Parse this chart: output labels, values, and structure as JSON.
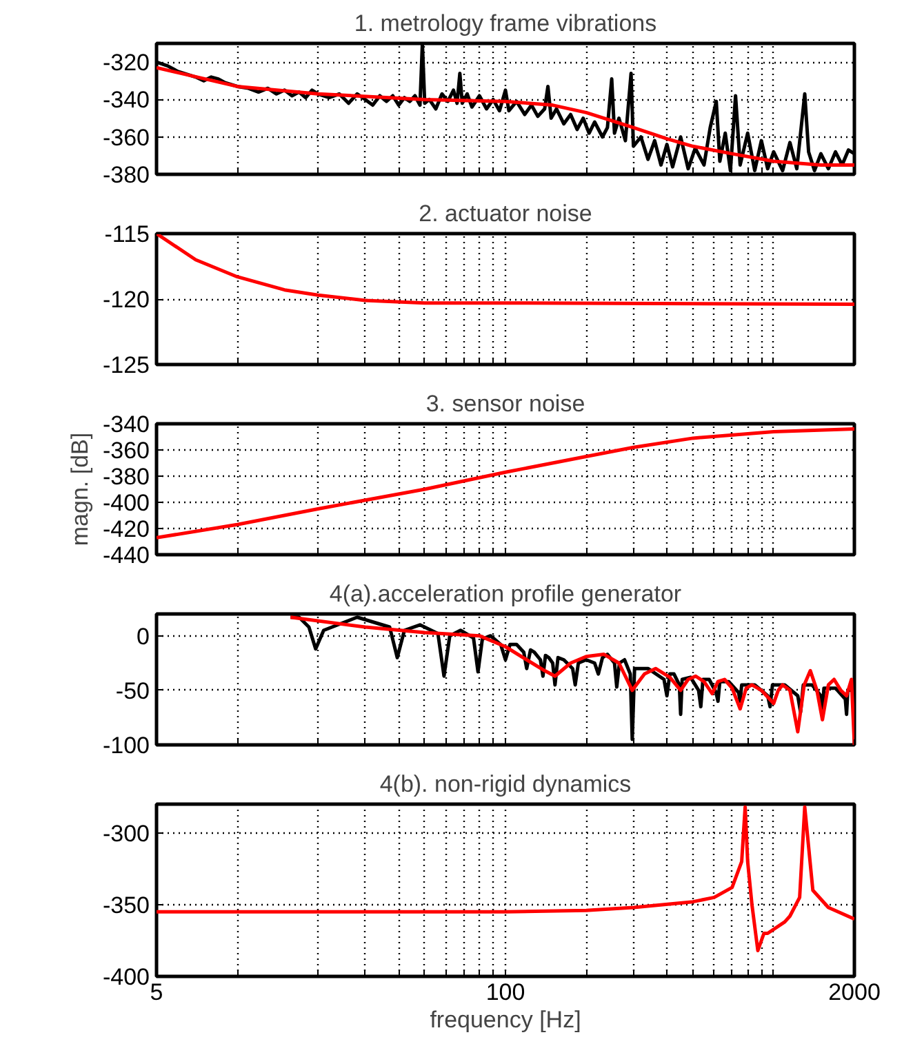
{
  "chart_data": [
    {
      "type": "line",
      "title": "1. metrology frame vibrations",
      "log": "x",
      "grid": true,
      "tick_labels": "y",
      "line_style": "solid",
      "xlim": [
        5,
        2000
      ],
      "xticks": [
        5,
        {
          "value": 10,
          "label": null
        },
        {
          "value": 20,
          "label": null
        },
        {
          "value": 30,
          "label": null
        },
        {
          "value": 40,
          "label": null
        },
        {
          "value": 50,
          "label": null
        },
        {
          "value": 60,
          "label": null
        },
        {
          "value": 70,
          "label": null
        },
        {
          "value": 80,
          "label": null
        },
        {
          "value": 90,
          "label": null
        },
        100,
        {
          "value": 200,
          "label": null
        },
        {
          "value": 300,
          "label": null
        },
        {
          "value": 400,
          "label": null
        },
        {
          "value": 500,
          "label": null
        },
        {
          "value": 600,
          "label": null
        },
        {
          "value": 700,
          "label": null
        },
        {
          "value": 800,
          "label": null
        },
        {
          "value": 900,
          "label": null
        },
        {
          "value": 1000,
          "label": null
        },
        2000
      ],
      "ylim": [
        -380,
        -310
      ],
      "yticks": [
        -380,
        -360,
        -340,
        -320
      ],
      "series": [
        {
          "color": "#000000",
          "x": [
            5,
            5.5,
            6,
            7,
            7.5,
            8,
            8.5,
            9,
            10,
            11,
            12,
            13,
            14,
            15,
            16,
            17,
            18,
            19,
            20,
            22,
            24,
            26,
            28,
            30,
            32,
            34,
            36,
            38,
            40,
            42,
            44,
            46,
            48,
            49,
            50,
            52,
            55,
            58,
            61,
            64,
            66,
            67.6,
            69,
            72,
            75,
            80,
            85,
            90,
            95,
            100,
            103,
            110,
            118,
            125,
            132,
            140,
            144,
            148,
            155,
            165,
            175,
            185,
            195,
            205,
            215,
            230,
            240,
            249,
            255,
            265,
            280,
            294,
            300,
            320,
            340,
            360,
            380,
            400,
            420,
            450,
            480,
            510,
            550,
            580,
            611,
            630,
            660,
            690,
            721,
            750,
            800,
            850,
            900,
            950,
            1000,
            1080,
            1150,
            1220,
            1306,
            1350,
            1420,
            1500,
            1600,
            1700,
            1800,
            1900,
            2000
          ],
          "values": [
            -320,
            -322,
            -325,
            -328,
            -330,
            -328,
            -329,
            -331,
            -333,
            -334,
            -336,
            -334,
            -337,
            -335,
            -338,
            -336,
            -339,
            -335,
            -337,
            -339,
            -337,
            -342,
            -337,
            -340,
            -343,
            -338,
            -341,
            -338,
            -343,
            -339,
            -341,
            -338,
            -343,
            -310,
            -342,
            -340,
            -345,
            -337,
            -341,
            -335,
            -342,
            -326,
            -342,
            -337,
            -344,
            -338,
            -345,
            -340,
            -346,
            -335,
            -346,
            -341,
            -348,
            -343,
            -349,
            -345,
            -333,
            -350,
            -345,
            -353,
            -348,
            -356,
            -350,
            -358,
            -352,
            -360,
            -355,
            -329,
            -358,
            -350,
            -362,
            -326,
            -365,
            -360,
            -372,
            -362,
            -375,
            -364,
            -376,
            -360,
            -377,
            -366,
            -375,
            -355,
            -341,
            -373,
            -358,
            -378,
            -338,
            -375,
            -358,
            -378,
            -362,
            -377,
            -368,
            -378,
            -363,
            -377,
            -337,
            -368,
            -378,
            -369,
            -377,
            -368,
            -375,
            -367,
            -369
          ]
        },
        {
          "color": "#ff0000",
          "x": [
            5,
            10,
            20,
            50,
            100,
            150,
            200,
            300,
            400,
            500,
            700,
            1000,
            1500,
            2000
          ],
          "values": [
            -323,
            -333,
            -337,
            -340,
            -341,
            -343,
            -347,
            -355,
            -361,
            -365,
            -369,
            -373,
            -375,
            -375
          ]
        }
      ]
    },
    {
      "type": "line",
      "title": "2. actuator noise",
      "log": "x",
      "grid": true,
      "tick_labels": "y",
      "line_style": "solid",
      "xlim": [
        5,
        2000
      ],
      "xticks": [
        5,
        {
          "value": 10,
          "label": null
        },
        {
          "value": 20,
          "label": null
        },
        {
          "value": 30,
          "label": null
        },
        {
          "value": 40,
          "label": null
        },
        {
          "value": 50,
          "label": null
        },
        {
          "value": 60,
          "label": null
        },
        {
          "value": 70,
          "label": null
        },
        {
          "value": 80,
          "label": null
        },
        {
          "value": 90,
          "label": null
        },
        100,
        {
          "value": 200,
          "label": null
        },
        {
          "value": 300,
          "label": null
        },
        {
          "value": 400,
          "label": null
        },
        {
          "value": 500,
          "label": null
        },
        {
          "value": 600,
          "label": null
        },
        {
          "value": 700,
          "label": null
        },
        {
          "value": 800,
          "label": null
        },
        {
          "value": 900,
          "label": null
        },
        {
          "value": 1000,
          "label": null
        },
        2000
      ],
      "ylim": [
        -125,
        -115
      ],
      "yticks": [
        -125,
        -120,
        -115
      ],
      "series": [
        {
          "color": "#ff0000",
          "x": [
            5,
            7,
            10,
            15,
            20,
            30,
            50,
            100,
            2000
          ],
          "values": [
            -115,
            -117,
            -118.3,
            -119.3,
            -119.7,
            -120.1,
            -120.3,
            -120.3,
            -120.4
          ]
        }
      ]
    },
    {
      "type": "line",
      "title": "3. sensor noise",
      "ylabel": "magn. [dB]",
      "log": "x",
      "grid": true,
      "tick_labels": "y",
      "line_style": "solid",
      "xlim": [
        5,
        2000
      ],
      "xticks": [
        5,
        {
          "value": 10,
          "label": null
        },
        {
          "value": 20,
          "label": null
        },
        {
          "value": 30,
          "label": null
        },
        {
          "value": 40,
          "label": null
        },
        {
          "value": 50,
          "label": null
        },
        {
          "value": 60,
          "label": null
        },
        {
          "value": 70,
          "label": null
        },
        {
          "value": 80,
          "label": null
        },
        {
          "value": 90,
          "label": null
        },
        100,
        {
          "value": 200,
          "label": null
        },
        {
          "value": 300,
          "label": null
        },
        {
          "value": 400,
          "label": null
        },
        {
          "value": 500,
          "label": null
        },
        {
          "value": 600,
          "label": null
        },
        {
          "value": 700,
          "label": null
        },
        {
          "value": 800,
          "label": null
        },
        {
          "value": 900,
          "label": null
        },
        {
          "value": 1000,
          "label": null
        },
        2000
      ],
      "ylim": [
        -440,
        -340
      ],
      "yticks": [
        -440,
        -420,
        -400,
        -380,
        -360,
        -340
      ],
      "series": [
        {
          "color": "#ff0000",
          "x": [
            5,
            10,
            20,
            50,
            100,
            200,
            300,
            500,
            1000,
            2000
          ],
          "values": [
            -427,
            -417,
            -405,
            -390,
            -377,
            -365,
            -358,
            -351,
            -346,
            -344
          ]
        }
      ]
    },
    {
      "type": "line",
      "title": "4(a).acceleration profile generator",
      "log": "x",
      "grid": true,
      "tick_labels": "y",
      "line_style": "solid",
      "xlim": [
        5,
        2000
      ],
      "xticks": [
        5,
        {
          "value": 10,
          "label": null
        },
        {
          "value": 20,
          "label": null
        },
        {
          "value": 30,
          "label": null
        },
        {
          "value": 40,
          "label": null
        },
        {
          "value": 50,
          "label": null
        },
        {
          "value": 60,
          "label": null
        },
        {
          "value": 70,
          "label": null
        },
        {
          "value": 80,
          "label": null
        },
        {
          "value": 90,
          "label": null
        },
        100,
        {
          "value": 200,
          "label": null
        },
        {
          "value": 300,
          "label": null
        },
        {
          "value": 400,
          "label": null
        },
        {
          "value": 500,
          "label": null
        },
        {
          "value": 600,
          "label": null
        },
        {
          "value": 700,
          "label": null
        },
        {
          "value": 800,
          "label": null
        },
        {
          "value": 900,
          "label": null
        },
        {
          "value": 1000,
          "label": null
        },
        2000
      ],
      "ylim": [
        -100,
        20
      ],
      "yticks": [
        -100,
        -50,
        0
      ],
      "series": [
        {
          "color": "#000000",
          "x": [
            15.8,
            17,
            18.5,
            19.6,
            21,
            28,
            37,
            39.5,
            42,
            48,
            56,
            59,
            62,
            68,
            76,
            79,
            82,
            88,
            96,
            100,
            104,
            110,
            117,
            120,
            124,
            128,
            135,
            138,
            141,
            145,
            150,
            153,
            157,
            165,
            178,
            182,
            187,
            200,
            215,
            222,
            230,
            240,
            255,
            260,
            266,
            278,
            292,
            297,
            303,
            340,
            390,
            400,
            410,
            425,
            445,
            450,
            456,
            490,
            525,
            535,
            545,
            575,
            610,
            620,
            630,
            680,
            740,
            750,
            760,
            850,
            950,
            970,
            990,
            1100,
            1230,
            1260,
            1290,
            1390,
            1500,
            1520,
            1540,
            1700,
            1850,
            1870,
            1890,
            2000
          ],
          "values": [
            17,
            17,
            8,
            -12,
            5,
            17,
            8,
            -20,
            5,
            10,
            2,
            -37,
            0,
            5,
            -2,
            -33,
            -3,
            0,
            -8,
            -22,
            -8,
            -8,
            -15,
            -30,
            -13,
            -15,
            -22,
            -37,
            -18,
            -20,
            -25,
            -45,
            -20,
            -22,
            -30,
            -45,
            -25,
            -22,
            -25,
            -35,
            -20,
            -17,
            -25,
            -47,
            -25,
            -22,
            -35,
            -95,
            -30,
            -30,
            -40,
            -55,
            -35,
            -35,
            -45,
            -72,
            -40,
            -38,
            -50,
            -65,
            -40,
            -40,
            -52,
            -60,
            -42,
            -42,
            -52,
            -60,
            -45,
            -45,
            -55,
            -65,
            -45,
            -45,
            -55,
            -70,
            -45,
            -45,
            -55,
            -70,
            -48,
            -48,
            -58,
            -72,
            -50,
            -50
          ]
        },
        {
          "color": "#ff0000",
          "x": [
            15.8,
            30,
            50,
            80,
            100,
            120,
            140,
            153,
            175,
            200,
            233,
            265,
            297,
            330,
            363,
            410,
            450,
            480,
            512,
            550,
            590,
            620,
            656,
            700,
            750,
            790,
            830,
            900,
            1000,
            1040,
            1080,
            1150,
            1230,
            1300,
            1370,
            1450,
            1520,
            1600,
            1680,
            1780,
            1870,
            1950,
            2000
          ],
          "values": [
            17,
            8,
            3,
            0,
            -10,
            -22,
            -32,
            -37,
            -25,
            -19,
            -17,
            -25,
            -50,
            -35,
            -30,
            -38,
            -50,
            -40,
            -37,
            -42,
            -53,
            -42,
            -40,
            -48,
            -67,
            -48,
            -45,
            -50,
            -62,
            -50,
            -45,
            -50,
            -88,
            -45,
            -32,
            -50,
            -77,
            -45,
            -40,
            -50,
            -55,
            -40,
            -100
          ]
        }
      ]
    },
    {
      "type": "line",
      "title": "4(b). non-rigid dynamics",
      "xlabel": "frequency [Hz]",
      "log": "x",
      "grid": true,
      "line_style": "solid",
      "xlim": [
        5,
        2000
      ],
      "xticks": [
        5,
        {
          "value": 10,
          "label": null
        },
        {
          "value": 20,
          "label": null
        },
        {
          "value": 30,
          "label": null
        },
        {
          "value": 40,
          "label": null
        },
        {
          "value": 50,
          "label": null
        },
        {
          "value": 60,
          "label": null
        },
        {
          "value": 70,
          "label": null
        },
        {
          "value": 80,
          "label": null
        },
        {
          "value": 90,
          "label": null
        },
        100,
        {
          "value": 200,
          "label": null
        },
        {
          "value": 300,
          "label": null
        },
        {
          "value": 400,
          "label": null
        },
        {
          "value": 500,
          "label": null
        },
        {
          "value": 600,
          "label": null
        },
        {
          "value": 700,
          "label": null
        },
        {
          "value": 800,
          "label": null
        },
        {
          "value": 900,
          "label": null
        },
        {
          "value": 1000,
          "label": null
        },
        2000
      ],
      "ylim": [
        -400,
        -280
      ],
      "yticks": [
        -400,
        -350,
        -300
      ],
      "series": [
        {
          "color": "#ff0000",
          "x": [
            5,
            100,
            200,
            300,
            500,
            600,
            700,
            760,
            783,
            800,
            830,
            873,
            920,
            950,
            1100,
            1150,
            1250,
            1306,
            1400,
            1600,
            2000
          ],
          "values": [
            -355,
            -355,
            -354,
            -352,
            -348,
            -345,
            -338,
            -320,
            -282,
            -320,
            -350,
            -382,
            -370,
            -370,
            -362,
            -358,
            -345,
            -282,
            -340,
            -352,
            -360
          ]
        }
      ]
    }
  ]
}
